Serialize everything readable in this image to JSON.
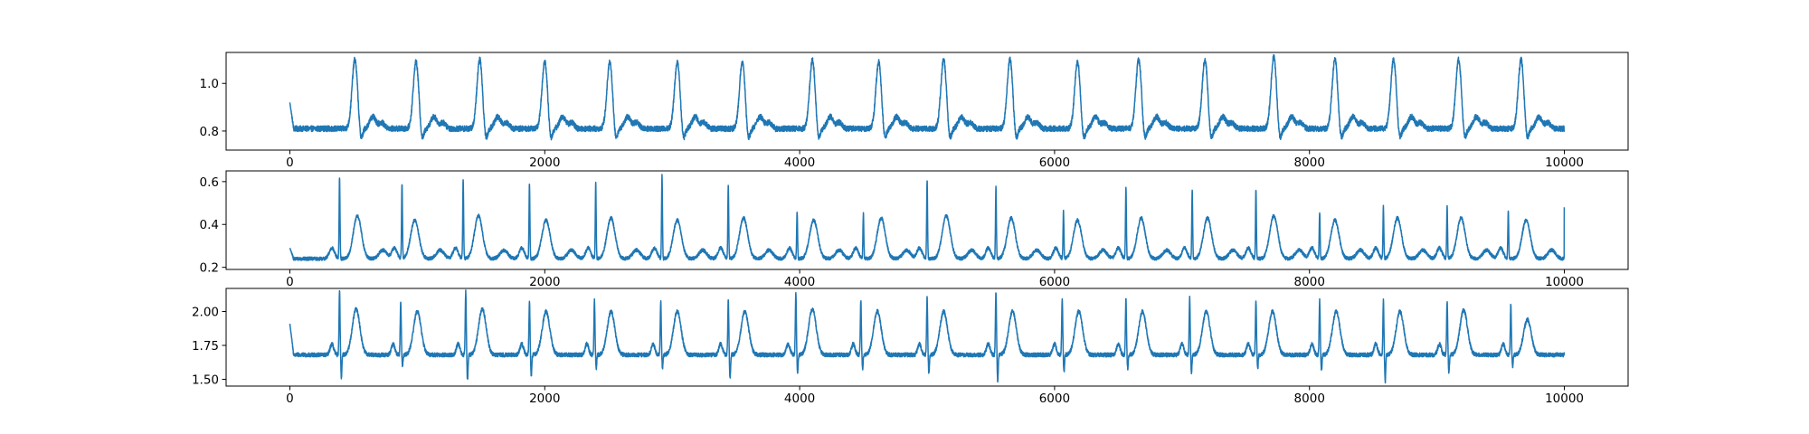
{
  "chart_data": [
    {
      "type": "line",
      "title": "",
      "xlabel": "",
      "ylabel": "",
      "xlim": [
        -500,
        10500
      ],
      "ylim": [
        0.72,
        1.13
      ],
      "xticks": [
        0,
        2000,
        4000,
        6000,
        8000,
        10000
      ],
      "xtick_labels": [
        "0",
        "2000",
        "4000",
        "6000",
        "8000",
        "10000"
      ],
      "yticks": [
        0.8,
        1.0
      ],
      "ytick_labels": [
        "0.8",
        "1.0"
      ],
      "grid": false,
      "legend": "none",
      "color": "#1f77b4",
      "series": [
        {
          "samples": 10000,
          "baseline": 0.81,
          "noise": 0.012,
          "start_value": 0.92,
          "end_value": 0.8,
          "peaks": [
            {
              "x": 510,
              "y": 1.1
            },
            {
              "x": 990,
              "y": 1.09
            },
            {
              "x": 1490,
              "y": 1.1
            },
            {
              "x": 2000,
              "y": 1.09
            },
            {
              "x": 2510,
              "y": 1.09
            },
            {
              "x": 3040,
              "y": 1.09
            },
            {
              "x": 3550,
              "y": 1.09
            },
            {
              "x": 4100,
              "y": 1.1
            },
            {
              "x": 4620,
              "y": 1.09
            },
            {
              "x": 5130,
              "y": 1.1
            },
            {
              "x": 5650,
              "y": 1.1
            },
            {
              "x": 6180,
              "y": 1.09
            },
            {
              "x": 6660,
              "y": 1.1
            },
            {
              "x": 7180,
              "y": 1.1
            },
            {
              "x": 7720,
              "y": 1.11
            },
            {
              "x": 8200,
              "y": 1.1
            },
            {
              "x": 8660,
              "y": 1.1
            },
            {
              "x": 9170,
              "y": 1.1
            },
            {
              "x": 9660,
              "y": 1.1
            }
          ]
        }
      ]
    },
    {
      "type": "line",
      "title": "",
      "xlabel": "",
      "ylabel": "",
      "xlim": [
        -500,
        10500
      ],
      "ylim": [
        0.19,
        0.65
      ],
      "xticks": [
        0,
        2000,
        4000,
        6000,
        8000,
        10000
      ],
      "xtick_labels": [
        "0",
        "2000",
        "4000",
        "6000",
        "8000",
        "10000"
      ],
      "yticks": [
        0.2,
        0.4,
        0.6
      ],
      "ytick_labels": [
        "0.2",
        "0.4",
        "0.6"
      ],
      "grid": false,
      "legend": "none",
      "color": "#1f77b4",
      "series": [
        {
          "samples": 10000,
          "baseline": 0.24,
          "noise": 0.008,
          "start_value": 0.29,
          "end_value": 0.48,
          "spikes": [
            {
              "x": 390,
              "y": 0.62
            },
            {
              "x": 880,
              "y": 0.59
            },
            {
              "x": 1360,
              "y": 0.61
            },
            {
              "x": 1880,
              "y": 0.59
            },
            {
              "x": 2400,
              "y": 0.59
            },
            {
              "x": 2920,
              "y": 0.63
            },
            {
              "x": 3440,
              "y": 0.58
            },
            {
              "x": 3980,
              "y": 0.46
            },
            {
              "x": 4500,
              "y": 0.45
            },
            {
              "x": 5000,
              "y": 0.61
            },
            {
              "x": 5540,
              "y": 0.57
            },
            {
              "x": 6070,
              "y": 0.46
            },
            {
              "x": 6560,
              "y": 0.58
            },
            {
              "x": 7080,
              "y": 0.56
            },
            {
              "x": 7580,
              "y": 0.56
            },
            {
              "x": 8080,
              "y": 0.46
            },
            {
              "x": 8580,
              "y": 0.48
            },
            {
              "x": 9080,
              "y": 0.48
            },
            {
              "x": 9560,
              "y": 0.46
            }
          ],
          "waves": [
            {
              "x": 530,
              "y": 0.44
            },
            {
              "x": 980,
              "y": 0.42
            },
            {
              "x": 1480,
              "y": 0.44
            },
            {
              "x": 2010,
              "y": 0.42
            },
            {
              "x": 2520,
              "y": 0.43
            },
            {
              "x": 3040,
              "y": 0.42
            },
            {
              "x": 3560,
              "y": 0.43
            },
            {
              "x": 4110,
              "y": 0.42
            },
            {
              "x": 4640,
              "y": 0.43
            },
            {
              "x": 5150,
              "y": 0.44
            },
            {
              "x": 5660,
              "y": 0.43
            },
            {
              "x": 6180,
              "y": 0.42
            },
            {
              "x": 6680,
              "y": 0.43
            },
            {
              "x": 7200,
              "y": 0.43
            },
            {
              "x": 7720,
              "y": 0.44
            },
            {
              "x": 8200,
              "y": 0.42
            },
            {
              "x": 8690,
              "y": 0.43
            },
            {
              "x": 9190,
              "y": 0.43
            },
            {
              "x": 9700,
              "y": 0.42
            }
          ]
        }
      ]
    },
    {
      "type": "line",
      "title": "",
      "xlabel": "",
      "ylabel": "",
      "xlim": [
        -500,
        10500
      ],
      "ylim": [
        1.45,
        2.17
      ],
      "xticks": [
        0,
        2000,
        4000,
        6000,
        8000,
        10000
      ],
      "xtick_labels": [
        "0",
        "2000",
        "4000",
        "6000",
        "8000",
        "10000"
      ],
      "yticks": [
        1.5,
        1.75,
        2.0
      ],
      "ytick_labels": [
        "1.50",
        "1.75",
        "2.00"
      ],
      "grid": false,
      "legend": "none",
      "color": "#1f77b4",
      "series": [
        {
          "samples": 10000,
          "baseline": 1.68,
          "noise": 0.015,
          "start_value": 1.91,
          "end_value": 1.7,
          "beats": [
            {
              "x": 390,
              "peak": 2.15,
              "trough": 1.51,
              "wave": 2.02
            },
            {
              "x": 870,
              "peak": 2.07,
              "trough": 1.6,
              "wave": 2.0
            },
            {
              "x": 1380,
              "peak": 2.15,
              "trough": 1.49,
              "wave": 2.02
            },
            {
              "x": 1880,
              "peak": 2.08,
              "trough": 1.52,
              "wave": 2.0
            },
            {
              "x": 2390,
              "peak": 2.08,
              "trough": 1.58,
              "wave": 2.0
            },
            {
              "x": 2910,
              "peak": 2.08,
              "trough": 1.58,
              "wave": 2.0
            },
            {
              "x": 3440,
              "peak": 2.08,
              "trough": 1.51,
              "wave": 2.0
            },
            {
              "x": 3970,
              "peak": 2.13,
              "trough": 1.55,
              "wave": 2.02
            },
            {
              "x": 4480,
              "peak": 2.08,
              "trough": 1.58,
              "wave": 2.0
            },
            {
              "x": 5000,
              "peak": 2.1,
              "trough": 1.55,
              "wave": 2.0
            },
            {
              "x": 5540,
              "peak": 2.14,
              "trough": 1.49,
              "wave": 2.0
            },
            {
              "x": 6060,
              "peak": 2.1,
              "trough": 1.55,
              "wave": 2.0
            },
            {
              "x": 6560,
              "peak": 2.1,
              "trough": 1.58,
              "wave": 2.0
            },
            {
              "x": 7060,
              "peak": 2.1,
              "trough": 1.55,
              "wave": 2.0
            },
            {
              "x": 7580,
              "peak": 2.08,
              "trough": 1.58,
              "wave": 2.0
            },
            {
              "x": 8080,
              "peak": 2.08,
              "trough": 1.56,
              "wave": 2.0
            },
            {
              "x": 8580,
              "peak": 2.08,
              "trough": 1.48,
              "wave": 2.0
            },
            {
              "x": 9080,
              "peak": 2.08,
              "trough": 1.55,
              "wave": 2.01
            },
            {
              "x": 9580,
              "peak": 2.05,
              "trough": 1.6,
              "wave": 1.94
            }
          ]
        }
      ]
    }
  ]
}
